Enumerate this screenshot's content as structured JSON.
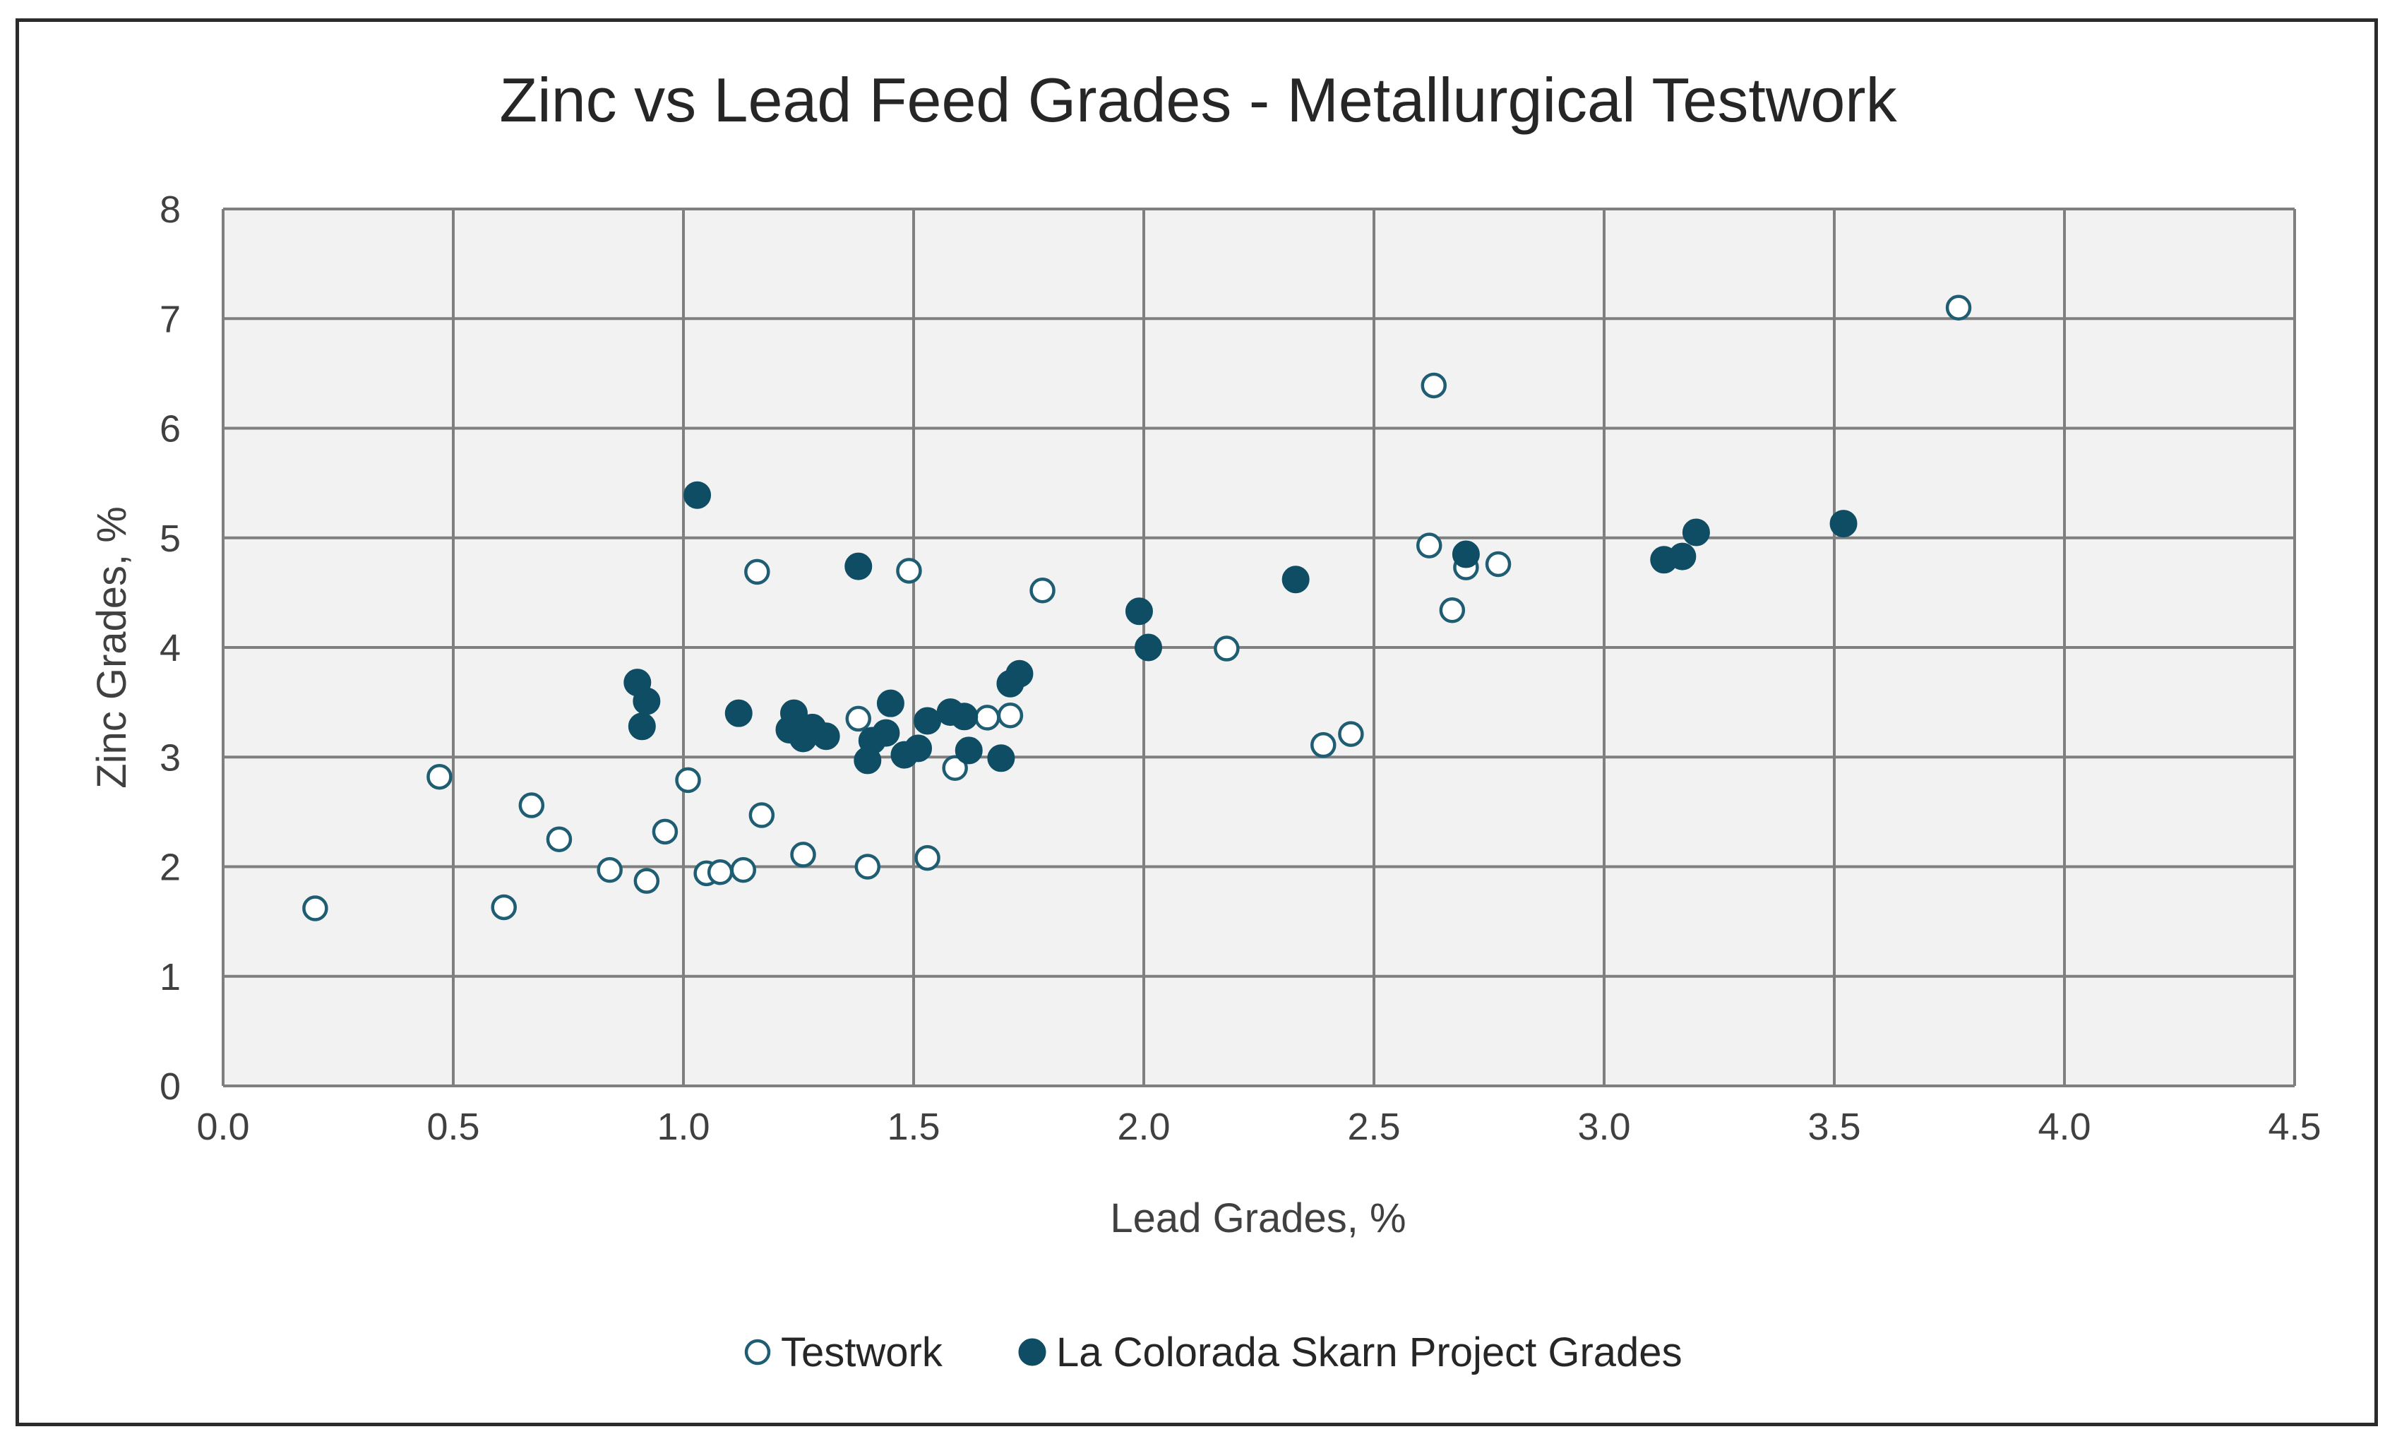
{
  "chart_data": {
    "type": "scatter",
    "title": "Zinc vs Lead Feed Grades - Metallurgical Testwork",
    "xlabel": "Lead Grades, %",
    "ylabel": "Zinc Grades, %",
    "xlim": [
      0.0,
      4.5
    ],
    "ylim": [
      0,
      8
    ],
    "x_ticks": [
      "0.0",
      "0.5",
      "1.0",
      "1.5",
      "2.0",
      "2.5",
      "3.0",
      "3.5",
      "4.0",
      "4.5"
    ],
    "y_ticks": [
      "0",
      "1",
      "2",
      "3",
      "4",
      "5",
      "6",
      "7",
      "8"
    ],
    "grid": true,
    "plot_background": "#f2f2f2",
    "grid_color": "#7f7f7f",
    "legend_position": "bottom",
    "series": [
      {
        "name": "Testwork",
        "marker": "hollow-circle",
        "color": "#1f5d73",
        "points": [
          [
            0.2,
            1.62
          ],
          [
            0.47,
            2.82
          ],
          [
            0.61,
            1.63
          ],
          [
            0.67,
            2.56
          ],
          [
            0.73,
            2.25
          ],
          [
            0.84,
            1.97
          ],
          [
            0.92,
            1.87
          ],
          [
            0.96,
            2.32
          ],
          [
            1.01,
            2.79
          ],
          [
            1.05,
            1.94
          ],
          [
            1.08,
            1.95
          ],
          [
            1.13,
            1.97
          ],
          [
            1.16,
            4.69
          ],
          [
            1.17,
            2.47
          ],
          [
            1.26,
            2.11
          ],
          [
            1.38,
            3.35
          ],
          [
            1.4,
            2.0
          ],
          [
            1.49,
            4.7
          ],
          [
            1.53,
            2.08
          ],
          [
            1.59,
            2.9
          ],
          [
            1.66,
            3.36
          ],
          [
            1.71,
            3.38
          ],
          [
            1.78,
            4.52
          ],
          [
            2.18,
            3.99
          ],
          [
            2.39,
            3.11
          ],
          [
            2.45,
            3.21
          ],
          [
            2.62,
            4.93
          ],
          [
            2.63,
            6.39
          ],
          [
            2.67,
            4.34
          ],
          [
            2.7,
            4.73
          ],
          [
            2.77,
            4.76
          ],
          [
            3.77,
            7.1
          ]
        ]
      },
      {
        "name": "La Colorada Skarn Project Grades",
        "marker": "filled-circle",
        "color": "#0e4d64",
        "points": [
          [
            0.9,
            3.68
          ],
          [
            0.92,
            3.51
          ],
          [
            0.91,
            3.28
          ],
          [
            1.03,
            5.39
          ],
          [
            1.12,
            3.4
          ],
          [
            1.23,
            3.25
          ],
          [
            1.24,
            3.4
          ],
          [
            1.26,
            3.17
          ],
          [
            1.28,
            3.27
          ],
          [
            1.31,
            3.19
          ],
          [
            1.38,
            4.74
          ],
          [
            1.4,
            2.97
          ],
          [
            1.41,
            3.15
          ],
          [
            1.44,
            3.22
          ],
          [
            1.45,
            3.49
          ],
          [
            1.48,
            3.02
          ],
          [
            1.51,
            3.08
          ],
          [
            1.53,
            3.33
          ],
          [
            1.58,
            3.41
          ],
          [
            1.61,
            3.37
          ],
          [
            1.62,
            3.06
          ],
          [
            1.69,
            2.99
          ],
          [
            1.71,
            3.67
          ],
          [
            1.73,
            3.76
          ],
          [
            1.99,
            4.33
          ],
          [
            2.01,
            4.0
          ],
          [
            2.33,
            4.62
          ],
          [
            2.7,
            4.85
          ],
          [
            3.13,
            4.8
          ],
          [
            3.17,
            4.83
          ],
          [
            3.2,
            5.05
          ],
          [
            3.52,
            5.13
          ]
        ]
      }
    ]
  }
}
